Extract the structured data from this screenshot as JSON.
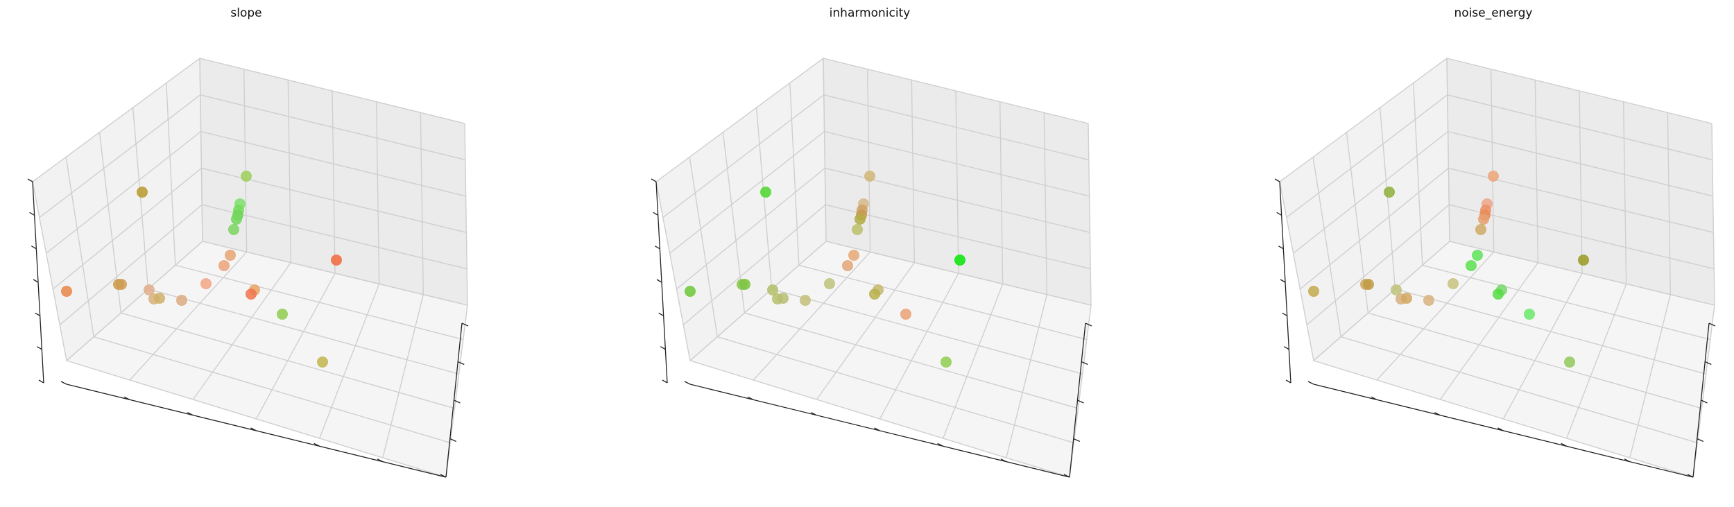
{
  "chart_data": [
    {
      "type": "scatter3d",
      "title": "slope",
      "tick_labels": "hidden",
      "grid": true,
      "points": [
        {
          "sx": 355,
          "sy": 254,
          "color": "#9ccf5a"
        },
        {
          "sx": 205,
          "sy": 277,
          "color": "#b99a2e"
        },
        {
          "sx": 346,
          "sy": 294,
          "color": "#7de06a"
        },
        {
          "sx": 344,
          "sy": 303,
          "color": "#72dc5a"
        },
        {
          "sx": 343,
          "sy": 310,
          "color": "#6fd657"
        },
        {
          "sx": 341,
          "sy": 316,
          "color": "#73d65d"
        },
        {
          "sx": 337,
          "sy": 331,
          "color": "#7ad560"
        },
        {
          "sx": 485,
          "sy": 375,
          "color": "#f26a3e"
        },
        {
          "sx": 332,
          "sy": 368,
          "color": "#e8a372"
        },
        {
          "sx": 323,
          "sy": 383,
          "color": "#eda27a"
        },
        {
          "sx": 96,
          "sy": 420,
          "color": "#ea8548"
        },
        {
          "sx": 171,
          "sy": 410,
          "color": "#ca9a4a"
        },
        {
          "sx": 175,
          "sy": 410,
          "color": "#cf9d53"
        },
        {
          "sx": 215,
          "sy": 418,
          "color": "#e0ad88"
        },
        {
          "sx": 222,
          "sy": 431,
          "color": "#d7b07a"
        },
        {
          "sx": 230,
          "sy": 430,
          "color": "#cfb068"
        },
        {
          "sx": 262,
          "sy": 433,
          "color": "#ddaa80"
        },
        {
          "sx": 297,
          "sy": 409,
          "color": "#f2a585"
        },
        {
          "sx": 367,
          "sy": 418,
          "color": "#e8a366"
        },
        {
          "sx": 362,
          "sy": 424,
          "color": "#f07550"
        },
        {
          "sx": 407,
          "sy": 453,
          "color": "#8fcd4f"
        },
        {
          "sx": 465,
          "sy": 522,
          "color": "#c2b54e"
        }
      ]
    },
    {
      "type": "scatter3d",
      "title": "inharmonicity",
      "tick_labels": "hidden",
      "grid": true,
      "points": [
        {
          "sx": 1254,
          "sy": 254,
          "color": "#d2b67a"
        },
        {
          "sx": 1104,
          "sy": 277,
          "color": "#4fd62e"
        },
        {
          "sx": 1245,
          "sy": 294,
          "color": "#d6b98a"
        },
        {
          "sx": 1243,
          "sy": 303,
          "color": "#cfa064"
        },
        {
          "sx": 1242,
          "sy": 310,
          "color": "#c99a4d"
        },
        {
          "sx": 1240,
          "sy": 316,
          "color": "#b3ad45"
        },
        {
          "sx": 1236,
          "sy": 331,
          "color": "#bcc06a"
        },
        {
          "sx": 1384,
          "sy": 375,
          "color": "#06e506"
        },
        {
          "sx": 1231,
          "sy": 368,
          "color": "#e8a876"
        },
        {
          "sx": 1222,
          "sy": 383,
          "color": "#e2a676"
        },
        {
          "sx": 995,
          "sy": 420,
          "color": "#6cc938"
        },
        {
          "sx": 1070,
          "sy": 410,
          "color": "#88c24e"
        },
        {
          "sx": 1074,
          "sy": 410,
          "color": "#7cc641"
        },
        {
          "sx": 1114,
          "sy": 418,
          "color": "#b2bf68"
        },
        {
          "sx": 1121,
          "sy": 431,
          "color": "#b4c06a"
        },
        {
          "sx": 1129,
          "sy": 430,
          "color": "#b9bd73"
        },
        {
          "sx": 1161,
          "sy": 433,
          "color": "#c4c07a"
        },
        {
          "sx": 1196,
          "sy": 409,
          "color": "#bec27a"
        },
        {
          "sx": 1266,
          "sy": 418,
          "color": "#c5b86d"
        },
        {
          "sx": 1261,
          "sy": 424,
          "color": "#b8b04e"
        },
        {
          "sx": 1306,
          "sy": 453,
          "color": "#eaa276"
        },
        {
          "sx": 1364,
          "sy": 522,
          "color": "#8fcf4f"
        }
      ]
    },
    {
      "type": "scatter3d",
      "title": "noise_energy",
      "tick_labels": "hidden",
      "grid": true,
      "points": [
        {
          "sx": 2153,
          "sy": 254,
          "color": "#eea47a"
        },
        {
          "sx": 2003,
          "sy": 277,
          "color": "#8db03a"
        },
        {
          "sx": 2144,
          "sy": 294,
          "color": "#eea488"
        },
        {
          "sx": 2142,
          "sy": 303,
          "color": "#ec9066"
        },
        {
          "sx": 2141,
          "sy": 310,
          "color": "#e88a56"
        },
        {
          "sx": 2139,
          "sy": 316,
          "color": "#e8a06e"
        },
        {
          "sx": 2135,
          "sy": 331,
          "color": "#d0aa66"
        },
        {
          "sx": 2283,
          "sy": 375,
          "color": "#9a9a22"
        },
        {
          "sx": 2130,
          "sy": 368,
          "color": "#5de35a"
        },
        {
          "sx": 2121,
          "sy": 383,
          "color": "#5ae04e"
        },
        {
          "sx": 1894,
          "sy": 420,
          "color": "#c2aa4c"
        },
        {
          "sx": 1969,
          "sy": 410,
          "color": "#cfa660"
        },
        {
          "sx": 1973,
          "sy": 410,
          "color": "#c09c44"
        },
        {
          "sx": 2013,
          "sy": 418,
          "color": "#bec27a"
        },
        {
          "sx": 2020,
          "sy": 431,
          "color": "#d5b07e"
        },
        {
          "sx": 2028,
          "sy": 430,
          "color": "#d2a862"
        },
        {
          "sx": 2060,
          "sy": 433,
          "color": "#d9b27e"
        },
        {
          "sx": 2095,
          "sy": 409,
          "color": "#c7c27e"
        },
        {
          "sx": 2165,
          "sy": 418,
          "color": "#77d86a"
        },
        {
          "sx": 2160,
          "sy": 424,
          "color": "#55dd45"
        },
        {
          "sx": 2205,
          "sy": 453,
          "color": "#6ae86a"
        },
        {
          "sx": 2263,
          "sy": 522,
          "color": "#92c95a"
        }
      ]
    }
  ]
}
